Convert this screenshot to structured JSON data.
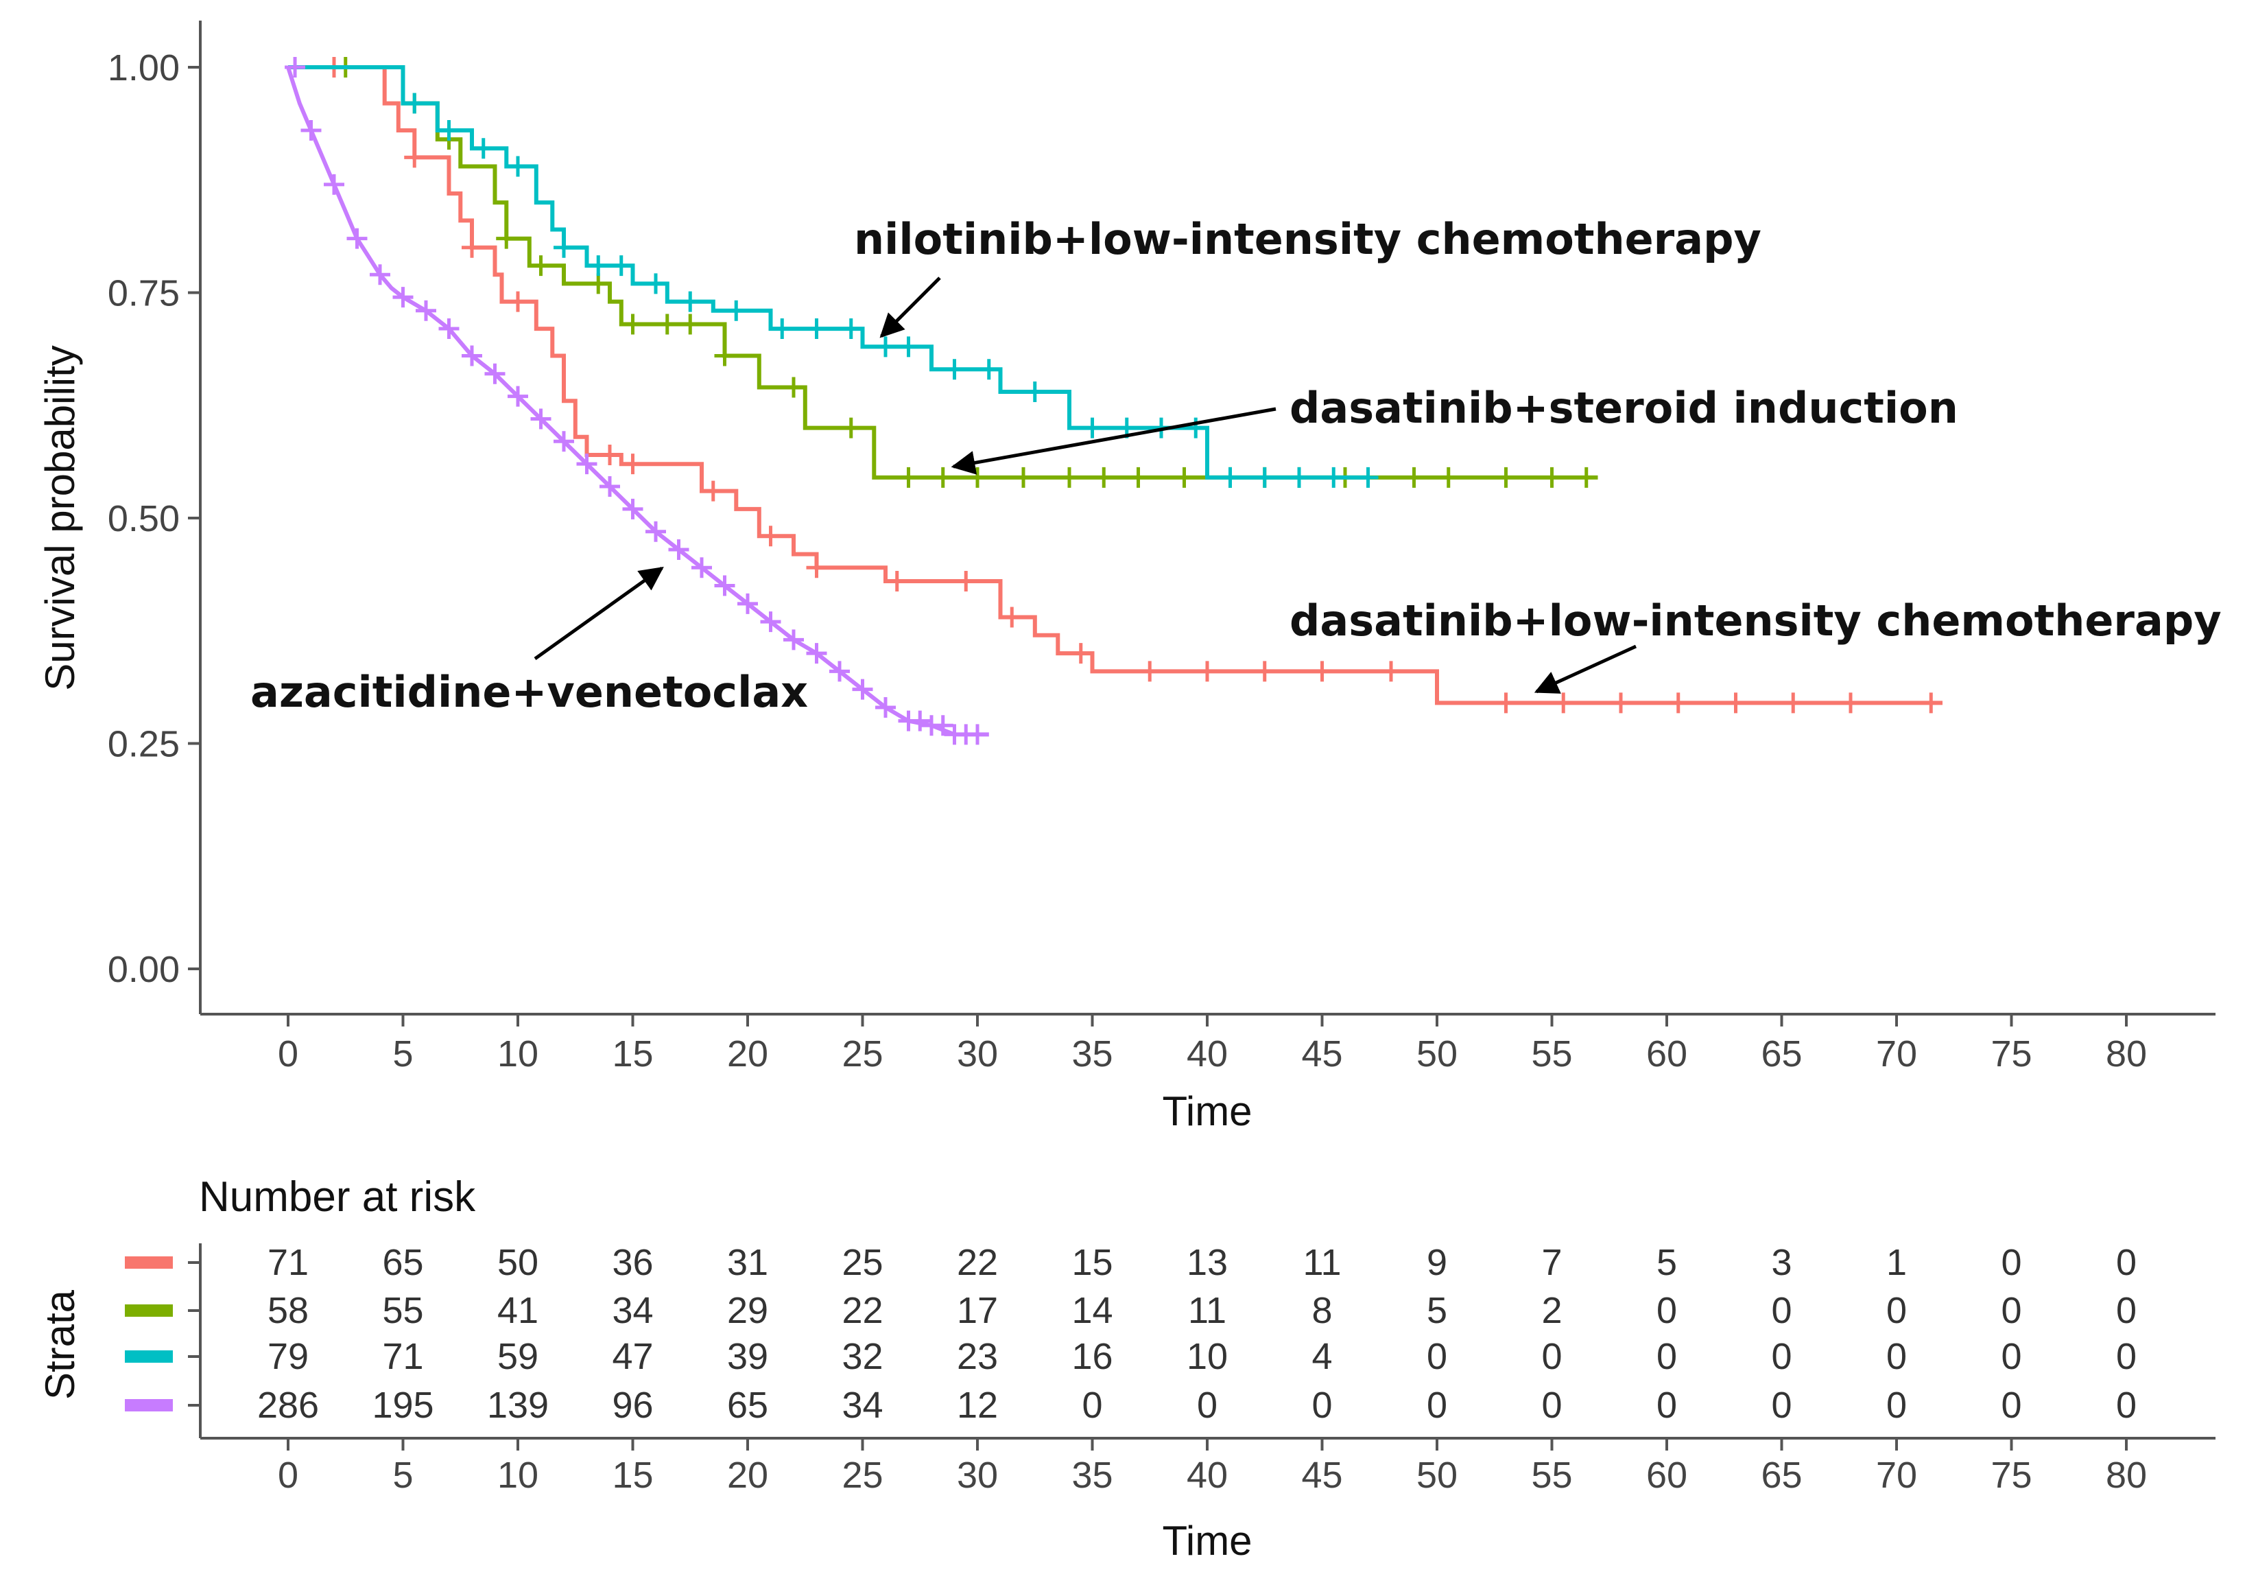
{
  "chart_data": {
    "type": "line",
    "subtype": "kaplan-meier",
    "xlabel": "Time",
    "ylabel": "Survival probability",
    "xlim": [
      0,
      80
    ],
    "ylim": [
      0,
      1
    ],
    "x_ticks": [
      "0",
      "5",
      "10",
      "15",
      "20",
      "25",
      "30",
      "35",
      "40",
      "45",
      "50",
      "55",
      "60",
      "65",
      "70",
      "75",
      "80"
    ],
    "y_ticks": [
      "0.00",
      "0.25",
      "0.50",
      "0.75",
      "1.00"
    ],
    "series": [
      {
        "name": "dasatinib+low-intensity chemotherapy",
        "color": "#F8766D",
        "steps": [
          [
            0,
            1.0
          ],
          [
            4.2,
            1.0
          ],
          [
            4.2,
            0.96
          ],
          [
            4.8,
            0.96
          ],
          [
            4.8,
            0.93
          ],
          [
            5.5,
            0.93
          ],
          [
            5.5,
            0.9
          ],
          [
            7.0,
            0.9
          ],
          [
            7.0,
            0.86
          ],
          [
            7.5,
            0.86
          ],
          [
            7.5,
            0.83
          ],
          [
            8.0,
            0.83
          ],
          [
            8.0,
            0.8
          ],
          [
            9.0,
            0.8
          ],
          [
            9.0,
            0.77
          ],
          [
            9.3,
            0.77
          ],
          [
            9.3,
            0.74
          ],
          [
            10.8,
            0.74
          ],
          [
            10.8,
            0.71
          ],
          [
            11.5,
            0.71
          ],
          [
            11.5,
            0.68
          ],
          [
            12.0,
            0.68
          ],
          [
            12.0,
            0.63
          ],
          [
            12.5,
            0.63
          ],
          [
            12.5,
            0.59
          ],
          [
            13.0,
            0.59
          ],
          [
            13.0,
            0.57
          ],
          [
            14.5,
            0.57
          ],
          [
            14.5,
            0.56
          ],
          [
            18.0,
            0.56
          ],
          [
            18.0,
            0.53
          ],
          [
            19.5,
            0.53
          ],
          [
            19.5,
            0.51
          ],
          [
            20.5,
            0.51
          ],
          [
            20.5,
            0.48
          ],
          [
            22.0,
            0.48
          ],
          [
            22.0,
            0.46
          ],
          [
            23.0,
            0.46
          ],
          [
            23.0,
            0.445
          ],
          [
            26.0,
            0.445
          ],
          [
            26.0,
            0.43
          ],
          [
            31.0,
            0.43
          ],
          [
            31.0,
            0.39
          ],
          [
            32.5,
            0.39
          ],
          [
            32.5,
            0.37
          ],
          [
            33.5,
            0.37
          ],
          [
            33.5,
            0.35
          ],
          [
            35.0,
            0.35
          ],
          [
            35.0,
            0.33
          ],
          [
            50.0,
            0.33
          ],
          [
            50.0,
            0.295
          ],
          [
            72.0,
            0.295
          ]
        ],
        "censor": [
          2,
          5.5,
          8,
          10,
          14,
          15,
          18.5,
          21,
          23,
          26.5,
          29.5,
          31.5,
          34.5,
          37.5,
          40,
          42.5,
          45,
          48,
          53,
          55.5,
          58,
          60.5,
          63,
          65.5,
          68,
          71.5
        ]
      },
      {
        "name": "dasatinib+steroid induction",
        "color": "#7CAE00",
        "steps": [
          [
            0,
            1.0
          ],
          [
            5.0,
            1.0
          ],
          [
            5.0,
            0.96
          ],
          [
            6.5,
            0.96
          ],
          [
            6.5,
            0.92
          ],
          [
            7.5,
            0.92
          ],
          [
            7.5,
            0.89
          ],
          [
            9.0,
            0.89
          ],
          [
            9.0,
            0.85
          ],
          [
            9.5,
            0.85
          ],
          [
            9.5,
            0.81
          ],
          [
            10.5,
            0.81
          ],
          [
            10.5,
            0.78
          ],
          [
            12.0,
            0.78
          ],
          [
            12.0,
            0.76
          ],
          [
            14.0,
            0.76
          ],
          [
            14.0,
            0.74
          ],
          [
            14.5,
            0.74
          ],
          [
            14.5,
            0.715
          ],
          [
            19.0,
            0.715
          ],
          [
            19.0,
            0.68
          ],
          [
            20.5,
            0.68
          ],
          [
            20.5,
            0.645
          ],
          [
            22.5,
            0.645
          ],
          [
            22.5,
            0.6
          ],
          [
            25.5,
            0.6
          ],
          [
            25.5,
            0.545
          ],
          [
            57.0,
            0.545
          ]
        ],
        "censor": [
          2.5,
          5.5,
          7,
          9.5,
          11,
          13.5,
          15,
          16.5,
          17.5,
          19,
          22,
          24.5,
          27,
          28.5,
          30,
          32,
          34,
          35.5,
          37,
          39,
          41,
          42.5,
          44,
          46,
          49,
          50.5,
          53,
          55,
          56.5
        ]
      },
      {
        "name": "nilotinib+low-intensity chemotherapy",
        "color": "#00BFC4",
        "steps": [
          [
            0,
            1.0
          ],
          [
            5.0,
            1.0
          ],
          [
            5.0,
            0.96
          ],
          [
            6.5,
            0.96
          ],
          [
            6.5,
            0.93
          ],
          [
            8.0,
            0.93
          ],
          [
            8.0,
            0.91
          ],
          [
            9.5,
            0.91
          ],
          [
            9.5,
            0.89
          ],
          [
            10.8,
            0.89
          ],
          [
            10.8,
            0.85
          ],
          [
            11.5,
            0.85
          ],
          [
            11.5,
            0.82
          ],
          [
            12.0,
            0.82
          ],
          [
            12.0,
            0.8
          ],
          [
            13.0,
            0.8
          ],
          [
            13.0,
            0.78
          ],
          [
            15.0,
            0.78
          ],
          [
            15.0,
            0.76
          ],
          [
            16.5,
            0.76
          ],
          [
            16.5,
            0.74
          ],
          [
            18.5,
            0.74
          ],
          [
            18.5,
            0.73
          ],
          [
            21.0,
            0.73
          ],
          [
            21.0,
            0.71
          ],
          [
            25.0,
            0.71
          ],
          [
            25.0,
            0.69
          ],
          [
            28.0,
            0.69
          ],
          [
            28.0,
            0.665
          ],
          [
            31.0,
            0.665
          ],
          [
            31.0,
            0.64
          ],
          [
            34.0,
            0.64
          ],
          [
            34.0,
            0.6
          ],
          [
            40.0,
            0.6
          ],
          [
            40.0,
            0.545
          ],
          [
            47.0,
            0.545
          ]
        ],
        "censor": [
          5.5,
          7,
          8.5,
          10,
          12,
          13.5,
          14.5,
          16,
          17.5,
          19.5,
          21.5,
          23,
          24.5,
          26,
          27,
          29,
          30.5,
          32.5,
          35,
          36.5,
          38,
          39.5,
          41,
          42.5,
          44,
          45.5,
          47
        ]
      },
      {
        "name": "azacitidine+venetoclax",
        "color": "#C77CFF",
        "steps": [
          [
            0,
            1.0
          ],
          [
            0.5,
            0.96
          ],
          [
            1,
            0.93
          ],
          [
            1.5,
            0.9
          ],
          [
            2,
            0.87
          ],
          [
            2.5,
            0.84
          ],
          [
            3,
            0.81
          ],
          [
            3.5,
            0.79
          ],
          [
            4,
            0.77
          ],
          [
            4.5,
            0.755
          ],
          [
            5,
            0.745
          ],
          [
            6,
            0.73
          ],
          [
            7,
            0.71
          ],
          [
            8,
            0.68
          ],
          [
            9,
            0.66
          ],
          [
            10,
            0.635
          ],
          [
            11,
            0.61
          ],
          [
            12,
            0.585
          ],
          [
            13,
            0.56
          ],
          [
            14,
            0.535
          ],
          [
            15,
            0.51
          ],
          [
            16,
            0.485
          ],
          [
            17,
            0.465
          ],
          [
            18,
            0.445
          ],
          [
            19,
            0.425
          ],
          [
            20,
            0.405
          ],
          [
            21,
            0.385
          ],
          [
            22,
            0.365
          ],
          [
            23,
            0.35
          ],
          [
            24,
            0.33
          ],
          [
            25,
            0.31
          ],
          [
            26,
            0.29
          ],
          [
            27,
            0.275
          ],
          [
            28,
            0.27
          ],
          [
            29,
            0.26
          ],
          [
            30.5,
            0.26
          ]
        ],
        "censor": [
          0.3,
          1,
          2,
          3,
          4,
          5,
          6,
          7,
          8,
          9,
          10,
          11,
          12,
          13,
          14,
          15,
          16,
          17,
          18,
          19,
          20,
          21,
          22,
          23,
          24,
          25,
          26,
          27,
          27.5,
          28,
          28.5,
          29,
          29.5,
          30
        ]
      }
    ],
    "annotations": [
      {
        "text": "nilotinib+low-intensity chemotherapy",
        "series": "nilotinib+low-intensity chemotherapy"
      },
      {
        "text": "dasatinib+steroid induction",
        "series": "dasatinib+steroid induction"
      },
      {
        "text": "dasatinib+low-intensity chemotherapy",
        "series": "dasatinib+low-intensity chemotherapy"
      },
      {
        "text": "azacitidine+venetoclax",
        "series": "azacitidine+venetoclax"
      }
    ],
    "risk_table": {
      "title": "Number at risk",
      "ylabel": "Strata",
      "xlabel": "Time",
      "times": [
        0,
        5,
        10,
        15,
        20,
        25,
        30,
        35,
        40,
        45,
        50,
        55,
        60,
        65,
        70,
        75,
        80
      ],
      "rows": [
        {
          "color": "#F8766D",
          "values": [
            "71",
            "65",
            "50",
            "36",
            "31",
            "25",
            "22",
            "15",
            "13",
            "11",
            "9",
            "7",
            "5",
            "3",
            "1",
            "0",
            "0"
          ]
        },
        {
          "color": "#7CAE00",
          "values": [
            "58",
            "55",
            "41",
            "34",
            "29",
            "22",
            "17",
            "14",
            "11",
            "8",
            "5",
            "2",
            "0",
            "0",
            "0",
            "0",
            "0"
          ]
        },
        {
          "color": "#00BFC4",
          "values": [
            "79",
            "71",
            "59",
            "47",
            "39",
            "32",
            "23",
            "16",
            "10",
            "4",
            "0",
            "0",
            "0",
            "0",
            "0",
            "0",
            "0"
          ]
        },
        {
          "color": "#C77CFF",
          "values": [
            "286",
            "195",
            "139",
            "96",
            "65",
            "34",
            "12",
            "0",
            "0",
            "0",
            "0",
            "0",
            "0",
            "0",
            "0",
            "0",
            "0"
          ]
        }
      ]
    }
  }
}
